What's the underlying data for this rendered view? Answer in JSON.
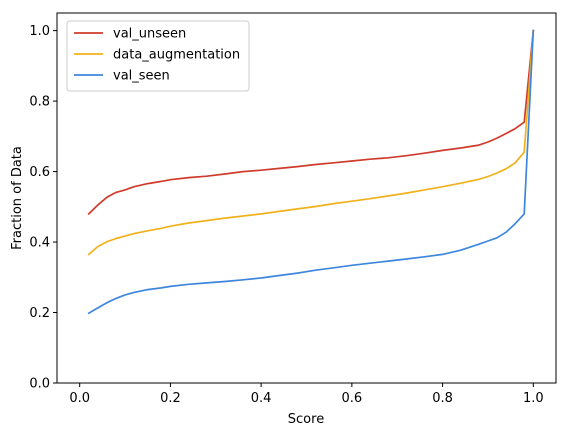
{
  "chart_data": {
    "type": "line",
    "title": "",
    "xlabel": "Score",
    "ylabel": "Fraction of Data",
    "xlim": [
      -0.05,
      1.05
    ],
    "ylim": [
      0.0,
      1.05
    ],
    "xticks": [
      0.0,
      0.2,
      0.4,
      0.6,
      0.8,
      1.0
    ],
    "xtick_labels": [
      "0.0",
      "0.2",
      "0.4",
      "0.6",
      "0.8",
      "1.0"
    ],
    "yticks": [
      0.0,
      0.2,
      0.4,
      0.6,
      0.8,
      1.0
    ],
    "ytick_labels": [
      "0.0",
      "0.2",
      "0.4",
      "0.6",
      "0.8",
      "1.0"
    ],
    "grid": false,
    "legend_position": "top-left",
    "series": [
      {
        "name": "val_unseen",
        "color": "#d03b2b",
        "x": [
          0.02,
          0.04,
          0.06,
          0.08,
          0.1,
          0.12,
          0.15,
          0.18,
          0.2,
          0.24,
          0.28,
          0.32,
          0.36,
          0.4,
          0.44,
          0.48,
          0.52,
          0.56,
          0.6,
          0.64,
          0.68,
          0.72,
          0.76,
          0.8,
          0.84,
          0.88,
          0.9,
          0.92,
          0.94,
          0.96,
          0.98,
          1.0
        ],
        "y": [
          0.48,
          0.505,
          0.527,
          0.541,
          0.548,
          0.557,
          0.566,
          0.572,
          0.577,
          0.583,
          0.587,
          0.593,
          0.6,
          0.604,
          0.609,
          0.614,
          0.62,
          0.625,
          0.63,
          0.635,
          0.639,
          0.645,
          0.652,
          0.66,
          0.667,
          0.675,
          0.684,
          0.695,
          0.708,
          0.722,
          0.74,
          1.0
        ]
      },
      {
        "name": "data_augmentation",
        "color": "#f2b11b",
        "x": [
          0.02,
          0.04,
          0.06,
          0.08,
          0.1,
          0.12,
          0.15,
          0.18,
          0.2,
          0.24,
          0.28,
          0.32,
          0.36,
          0.4,
          0.44,
          0.48,
          0.52,
          0.56,
          0.6,
          0.64,
          0.68,
          0.72,
          0.76,
          0.8,
          0.84,
          0.88,
          0.9,
          0.92,
          0.94,
          0.96,
          0.98,
          1.0
        ],
        "y": [
          0.365,
          0.387,
          0.401,
          0.41,
          0.417,
          0.424,
          0.432,
          0.439,
          0.445,
          0.454,
          0.461,
          0.468,
          0.474,
          0.48,
          0.487,
          0.494,
          0.501,
          0.509,
          0.516,
          0.523,
          0.531,
          0.539,
          0.548,
          0.557,
          0.567,
          0.578,
          0.586,
          0.596,
          0.608,
          0.625,
          0.655,
          1.0
        ]
      },
      {
        "name": "val_seen",
        "color": "#3d86de",
        "x": [
          0.02,
          0.04,
          0.06,
          0.08,
          0.1,
          0.12,
          0.15,
          0.18,
          0.2,
          0.24,
          0.28,
          0.32,
          0.36,
          0.4,
          0.44,
          0.48,
          0.52,
          0.56,
          0.6,
          0.64,
          0.68,
          0.72,
          0.76,
          0.8,
          0.84,
          0.88,
          0.9,
          0.92,
          0.94,
          0.96,
          0.98,
          1.0
        ],
        "y": [
          0.198,
          0.213,
          0.228,
          0.24,
          0.25,
          0.257,
          0.265,
          0.27,
          0.274,
          0.28,
          0.284,
          0.288,
          0.293,
          0.298,
          0.305,
          0.312,
          0.32,
          0.327,
          0.334,
          0.34,
          0.346,
          0.352,
          0.358,
          0.365,
          0.377,
          0.394,
          0.403,
          0.412,
          0.428,
          0.452,
          0.48,
          1.0
        ]
      }
    ]
  }
}
